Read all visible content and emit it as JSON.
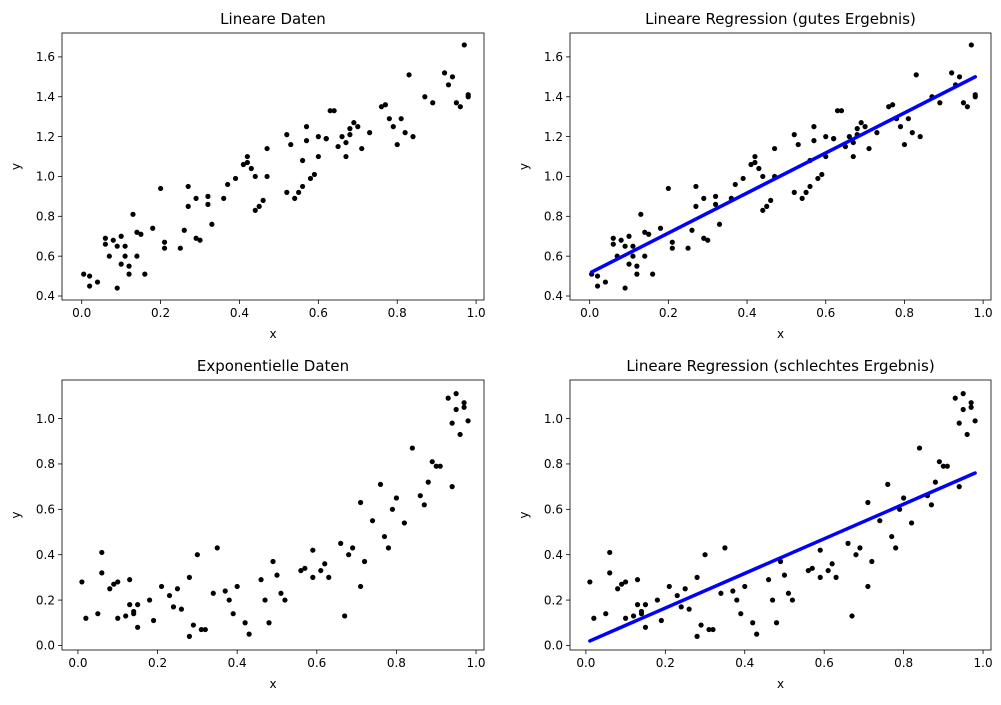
{
  "figure": {
    "background": "#ffffff"
  },
  "chart_data": [
    {
      "type": "scatter",
      "title": "Lineare Daten",
      "xlabel": "x",
      "ylabel": "y",
      "xlim": [
        -0.05,
        1.02
      ],
      "ylim": [
        0.38,
        1.72
      ],
      "xticks": [
        0.0,
        0.2,
        0.4,
        0.6,
        0.8,
        1.0
      ],
      "xtick_labels": [
        "0.0",
        "0.2",
        "0.4",
        "0.6",
        "0.8",
        "1.0"
      ],
      "yticks": [
        0.4,
        0.6,
        0.8,
        1.0,
        1.2,
        1.4,
        1.6
      ],
      "ytick_labels": [
        "0.4",
        "0.6",
        "0.8",
        "1.0",
        "1.2",
        "1.4",
        "1.6"
      ],
      "series": [
        {
          "kind": "scatter",
          "color": "#000000",
          "x": [
            0.005,
            0.02,
            0.02,
            0.04,
            0.06,
            0.06,
            0.07,
            0.08,
            0.09,
            0.09,
            0.1,
            0.1,
            0.11,
            0.11,
            0.12,
            0.12,
            0.13,
            0.14,
            0.14,
            0.15,
            0.16,
            0.18,
            0.2,
            0.21,
            0.21,
            0.25,
            0.26,
            0.27,
            0.27,
            0.29,
            0.29,
            0.3,
            0.32,
            0.32,
            0.33,
            0.36,
            0.37,
            0.39,
            0.41,
            0.42,
            0.42,
            0.43,
            0.44,
            0.44,
            0.45,
            0.46,
            0.47,
            0.47,
            0.52,
            0.52,
            0.53,
            0.54,
            0.55,
            0.56,
            0.56,
            0.57,
            0.57,
            0.58,
            0.59,
            0.6,
            0.6,
            0.62,
            0.62,
            0.63,
            0.64,
            0.65,
            0.66,
            0.67,
            0.67,
            0.68,
            0.68,
            0.69,
            0.7,
            0.71,
            0.73,
            0.76,
            0.77,
            0.78,
            0.79,
            0.8,
            0.81,
            0.82,
            0.83,
            0.84,
            0.87,
            0.89,
            0.92,
            0.93,
            0.94,
            0.95,
            0.96,
            0.97,
            0.98,
            0.98
          ],
          "y": [
            0.51,
            0.45,
            0.5,
            0.47,
            0.69,
            0.66,
            0.6,
            0.68,
            0.44,
            0.65,
            0.7,
            0.56,
            0.6,
            0.65,
            0.51,
            0.55,
            0.81,
            0.72,
            0.6,
            0.71,
            0.51,
            0.74,
            0.94,
            0.67,
            0.64,
            0.64,
            0.73,
            0.85,
            0.95,
            0.69,
            0.89,
            0.68,
            0.86,
            0.9,
            0.76,
            0.89,
            0.96,
            0.99,
            1.06,
            1.07,
            1.1,
            1.04,
            0.83,
            1.0,
            0.85,
            0.88,
            1.0,
            1.14,
            0.92,
            1.21,
            1.16,
            0.89,
            0.92,
            0.95,
            1.08,
            1.25,
            1.18,
            0.99,
            1.01,
            1.1,
            1.2,
            1.19,
            1.19,
            1.33,
            1.33,
            1.15,
            1.2,
            1.17,
            1.1,
            1.24,
            1.21,
            1.27,
            1.25,
            1.14,
            1.22,
            1.35,
            1.36,
            1.29,
            1.25,
            1.16,
            1.29,
            1.22,
            1.51,
            1.2,
            1.4,
            1.37,
            1.52,
            1.46,
            1.5,
            1.37,
            1.35,
            1.66,
            1.4,
            1.41
          ]
        }
      ]
    },
    {
      "type": "scatter",
      "title": "Lineare Regression (gutes Ergebnis)",
      "xlabel": "x",
      "ylabel": "y",
      "xlim": [
        -0.05,
        1.02
      ],
      "ylim": [
        0.38,
        1.72
      ],
      "xticks": [
        0.0,
        0.2,
        0.4,
        0.6,
        0.8,
        1.0
      ],
      "xtick_labels": [
        "0.0",
        "0.2",
        "0.4",
        "0.6",
        "0.8",
        "1.0"
      ],
      "yticks": [
        0.4,
        0.6,
        0.8,
        1.0,
        1.2,
        1.4,
        1.6
      ],
      "ytick_labels": [
        "0.4",
        "0.6",
        "0.8",
        "1.0",
        "1.2",
        "1.4",
        "1.6"
      ],
      "series": [
        {
          "kind": "scatter",
          "color": "#000000",
          "x": [
            0.005,
            0.02,
            0.02,
            0.04,
            0.06,
            0.06,
            0.07,
            0.08,
            0.09,
            0.09,
            0.1,
            0.1,
            0.11,
            0.11,
            0.12,
            0.12,
            0.13,
            0.14,
            0.14,
            0.15,
            0.16,
            0.18,
            0.2,
            0.21,
            0.21,
            0.25,
            0.26,
            0.27,
            0.27,
            0.29,
            0.29,
            0.3,
            0.32,
            0.32,
            0.33,
            0.36,
            0.37,
            0.39,
            0.41,
            0.42,
            0.42,
            0.43,
            0.44,
            0.44,
            0.45,
            0.46,
            0.47,
            0.47,
            0.52,
            0.52,
            0.53,
            0.54,
            0.55,
            0.56,
            0.56,
            0.57,
            0.57,
            0.58,
            0.59,
            0.6,
            0.6,
            0.62,
            0.62,
            0.63,
            0.64,
            0.65,
            0.66,
            0.67,
            0.67,
            0.68,
            0.68,
            0.69,
            0.7,
            0.71,
            0.73,
            0.76,
            0.77,
            0.78,
            0.79,
            0.8,
            0.81,
            0.82,
            0.83,
            0.84,
            0.87,
            0.89,
            0.92,
            0.93,
            0.94,
            0.95,
            0.96,
            0.97,
            0.98,
            0.98
          ],
          "y": [
            0.51,
            0.45,
            0.5,
            0.47,
            0.69,
            0.66,
            0.6,
            0.68,
            0.44,
            0.65,
            0.7,
            0.56,
            0.6,
            0.65,
            0.51,
            0.55,
            0.81,
            0.72,
            0.6,
            0.71,
            0.51,
            0.74,
            0.94,
            0.67,
            0.64,
            0.64,
            0.73,
            0.85,
            0.95,
            0.69,
            0.89,
            0.68,
            0.86,
            0.9,
            0.76,
            0.89,
            0.96,
            0.99,
            1.06,
            1.07,
            1.1,
            1.04,
            0.83,
            1.0,
            0.85,
            0.88,
            1.0,
            1.14,
            0.92,
            1.21,
            1.16,
            0.89,
            0.92,
            0.95,
            1.08,
            1.25,
            1.18,
            0.99,
            1.01,
            1.1,
            1.2,
            1.19,
            1.19,
            1.33,
            1.33,
            1.15,
            1.2,
            1.17,
            1.1,
            1.24,
            1.21,
            1.27,
            1.25,
            1.14,
            1.22,
            1.35,
            1.36,
            1.29,
            1.25,
            1.16,
            1.29,
            1.22,
            1.51,
            1.2,
            1.4,
            1.37,
            1.52,
            1.46,
            1.5,
            1.37,
            1.35,
            1.66,
            1.4,
            1.41
          ]
        },
        {
          "kind": "line",
          "color": "#0000ff",
          "x": [
            0.005,
            0.98
          ],
          "y": [
            0.52,
            1.5
          ]
        }
      ]
    },
    {
      "type": "scatter",
      "title": "Exponentielle Daten",
      "xlabel": "x",
      "ylabel": "y",
      "xlim": [
        -0.04,
        1.02
      ],
      "ylim": [
        -0.02,
        1.17
      ],
      "xticks": [
        0.0,
        0.2,
        0.4,
        0.6,
        0.8,
        1.0
      ],
      "xtick_labels": [
        "0.0",
        "0.2",
        "0.4",
        "0.6",
        "0.8",
        "1.0"
      ],
      "yticks": [
        0.0,
        0.2,
        0.4,
        0.6,
        0.8,
        1.0
      ],
      "ytick_labels": [
        "0.0",
        "0.2",
        "0.4",
        "0.6",
        "0.8",
        "1.0"
      ],
      "series": [
        {
          "kind": "scatter",
          "color": "#000000",
          "x": [
            0.01,
            0.02,
            0.05,
            0.06,
            0.06,
            0.08,
            0.09,
            0.1,
            0.1,
            0.12,
            0.13,
            0.13,
            0.14,
            0.14,
            0.15,
            0.15,
            0.18,
            0.19,
            0.21,
            0.23,
            0.24,
            0.25,
            0.26,
            0.28,
            0.28,
            0.29,
            0.3,
            0.31,
            0.32,
            0.34,
            0.35,
            0.37,
            0.38,
            0.39,
            0.4,
            0.42,
            0.43,
            0.46,
            0.47,
            0.48,
            0.49,
            0.5,
            0.51,
            0.52,
            0.56,
            0.57,
            0.59,
            0.59,
            0.61,
            0.62,
            0.63,
            0.66,
            0.67,
            0.68,
            0.69,
            0.71,
            0.71,
            0.72,
            0.74,
            0.76,
            0.77,
            0.78,
            0.79,
            0.8,
            0.82,
            0.84,
            0.86,
            0.87,
            0.88,
            0.89,
            0.9,
            0.91,
            0.93,
            0.94,
            0.94,
            0.95,
            0.95,
            0.96,
            0.97,
            0.97,
            0.98
          ],
          "y": [
            0.28,
            0.12,
            0.14,
            0.41,
            0.32,
            0.25,
            0.27,
            0.12,
            0.28,
            0.13,
            0.29,
            0.18,
            0.14,
            0.15,
            0.08,
            0.18,
            0.2,
            0.11,
            0.26,
            0.22,
            0.17,
            0.25,
            0.16,
            0.3,
            0.04,
            0.09,
            0.4,
            0.07,
            0.07,
            0.23,
            0.43,
            0.24,
            0.2,
            0.14,
            0.26,
            0.1,
            0.05,
            0.29,
            0.2,
            0.1,
            0.37,
            0.31,
            0.23,
            0.2,
            0.33,
            0.34,
            0.3,
            0.42,
            0.33,
            0.36,
            0.3,
            0.45,
            0.13,
            0.4,
            0.43,
            0.26,
            0.63,
            0.37,
            0.55,
            0.71,
            0.48,
            0.43,
            0.6,
            0.65,
            0.54,
            0.87,
            0.66,
            0.62,
            0.72,
            0.81,
            0.79,
            0.79,
            1.09,
            0.98,
            0.7,
            1.11,
            1.04,
            0.93,
            1.05,
            1.07,
            0.99
          ]
        }
      ]
    },
    {
      "type": "scatter",
      "title": "Lineare Regression (schlechtes Ergebnis)",
      "xlabel": "x",
      "ylabel": "y",
      "xlim": [
        -0.04,
        1.02
      ],
      "ylim": [
        -0.02,
        1.17
      ],
      "xticks": [
        0.0,
        0.2,
        0.4,
        0.6,
        0.8,
        1.0
      ],
      "xtick_labels": [
        "0.0",
        "0.2",
        "0.4",
        "0.6",
        "0.8",
        "1.0"
      ],
      "yticks": [
        0.0,
        0.2,
        0.4,
        0.6,
        0.8,
        1.0
      ],
      "ytick_labels": [
        "0.0",
        "0.2",
        "0.4",
        "0.6",
        "0.8",
        "1.0"
      ],
      "series": [
        {
          "kind": "scatter",
          "color": "#000000",
          "x": [
            0.01,
            0.02,
            0.05,
            0.06,
            0.06,
            0.08,
            0.09,
            0.1,
            0.1,
            0.12,
            0.13,
            0.13,
            0.14,
            0.14,
            0.15,
            0.15,
            0.18,
            0.19,
            0.21,
            0.23,
            0.24,
            0.25,
            0.26,
            0.28,
            0.28,
            0.29,
            0.3,
            0.31,
            0.32,
            0.34,
            0.35,
            0.37,
            0.38,
            0.39,
            0.4,
            0.42,
            0.43,
            0.46,
            0.47,
            0.48,
            0.49,
            0.5,
            0.51,
            0.52,
            0.56,
            0.57,
            0.59,
            0.59,
            0.61,
            0.62,
            0.63,
            0.66,
            0.67,
            0.68,
            0.69,
            0.71,
            0.71,
            0.72,
            0.74,
            0.76,
            0.77,
            0.78,
            0.79,
            0.8,
            0.82,
            0.84,
            0.86,
            0.87,
            0.88,
            0.89,
            0.9,
            0.91,
            0.93,
            0.94,
            0.94,
            0.95,
            0.95,
            0.96,
            0.97,
            0.97,
            0.98
          ],
          "y": [
            0.28,
            0.12,
            0.14,
            0.41,
            0.32,
            0.25,
            0.27,
            0.12,
            0.28,
            0.13,
            0.29,
            0.18,
            0.14,
            0.15,
            0.08,
            0.18,
            0.2,
            0.11,
            0.26,
            0.22,
            0.17,
            0.25,
            0.16,
            0.3,
            0.04,
            0.09,
            0.4,
            0.07,
            0.07,
            0.23,
            0.43,
            0.24,
            0.2,
            0.14,
            0.26,
            0.1,
            0.05,
            0.29,
            0.2,
            0.1,
            0.37,
            0.31,
            0.23,
            0.2,
            0.33,
            0.34,
            0.3,
            0.42,
            0.33,
            0.36,
            0.3,
            0.45,
            0.13,
            0.4,
            0.43,
            0.26,
            0.63,
            0.37,
            0.55,
            0.71,
            0.48,
            0.43,
            0.6,
            0.65,
            0.54,
            0.87,
            0.66,
            0.62,
            0.72,
            0.81,
            0.79,
            0.79,
            1.09,
            0.98,
            0.7,
            1.11,
            1.04,
            0.93,
            1.05,
            1.07,
            0.99
          ]
        },
        {
          "kind": "line",
          "color": "#0000ff",
          "x": [
            0.01,
            0.98
          ],
          "y": [
            0.02,
            0.76
          ]
        }
      ]
    }
  ]
}
